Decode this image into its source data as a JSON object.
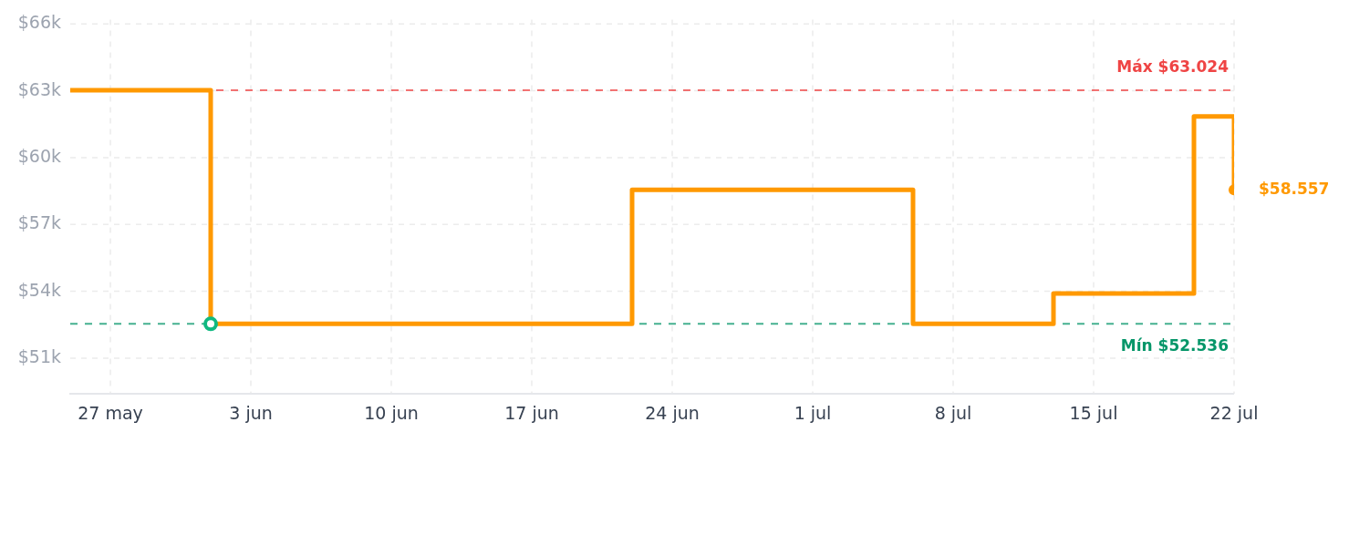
{
  "chart_data": {
    "type": "step",
    "x": [
      "--05-25",
      "--06-01",
      "--06-22",
      "--07-06",
      "--07-13",
      "--07-20",
      "--07-22"
    ],
    "series": [
      {
        "color": "#ff9900",
        "values": [
          63.024,
          52.536,
          58.557,
          52.536,
          53.9,
          61.85,
          58.557
        ]
      },
      {
        "type": "scatter",
        "color": "#10b981",
        "x": [
          "--06-01"
        ],
        "values": [
          52.536
        ],
        "marker": "circle"
      },
      {
        "type": "scatter",
        "color": "#ff9900",
        "x": [
          "--07-22"
        ],
        "values": [
          58.557
        ],
        "marker": "circle",
        "value_labels": [
          "$58.557"
        ]
      }
    ],
    "xlim": [
      "--05-25",
      "--07-22"
    ],
    "ylim": [
      49.4,
      66.2
    ],
    "xticks": [
      {
        "value": "--05-27",
        "label": "27 may"
      },
      {
        "value": "--06-03",
        "label": "3 jun"
      },
      {
        "value": "--06-10",
        "label": "10 jun"
      },
      {
        "value": "--06-17",
        "label": "17 jun"
      },
      {
        "value": "--06-24",
        "label": "24 jun"
      },
      {
        "value": "--07-01",
        "label": "1 jul"
      },
      {
        "value": "--07-08",
        "label": "8 jul"
      },
      {
        "value": "--07-15",
        "label": "15 jul"
      },
      {
        "value": "--07-22",
        "label": "22 jul"
      }
    ],
    "yticks": [
      {
        "value": 51,
        "label": "$51k"
      },
      {
        "value": 54,
        "label": "$54k"
      },
      {
        "value": 57,
        "label": "$57k"
      },
      {
        "value": 60,
        "label": "$60k"
      },
      {
        "value": 63,
        "label": "$63k"
      },
      {
        "value": 66,
        "label": "$66k"
      }
    ],
    "grid": true,
    "ref_lines": [
      {
        "axis": "y",
        "value": 63.024,
        "label": "Máx $63.024",
        "color": "#ef4444",
        "line_style": "dashed"
      },
      {
        "axis": "y",
        "value": 52.536,
        "label": "Mín $52.536",
        "color": "#059669",
        "line_style": "dashed"
      }
    ]
  }
}
